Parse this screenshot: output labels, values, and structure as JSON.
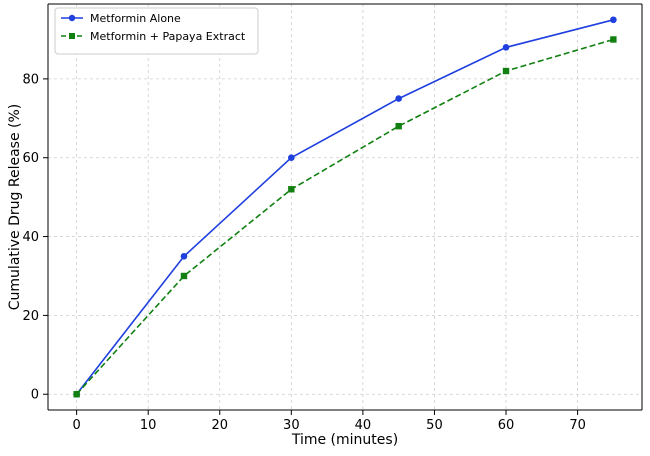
{
  "chart_data": {
    "type": "line",
    "title": "",
    "xlabel": "Time (minutes)",
    "ylabel": "Cumulative Drug Release (%)",
    "x": [
      0,
      15,
      30,
      45,
      60,
      75
    ],
    "xlim": [
      -4,
      79
    ],
    "ylim": [
      -4,
      99
    ],
    "xticks": [
      0,
      10,
      20,
      30,
      40,
      50,
      60,
      70
    ],
    "yticks": [
      0,
      20,
      40,
      60,
      80
    ],
    "grid": true,
    "legend_position": "top-left",
    "series": [
      {
        "name": "Metformin Alone",
        "values": [
          0,
          35,
          60,
          75,
          88,
          95
        ],
        "color": "#1f3fdf",
        "marker": "circle",
        "line_style": "solid"
      },
      {
        "name": "Metformin + Papaya Extract",
        "values": [
          0,
          30,
          52,
          68,
          82,
          90
        ],
        "color": "#118011",
        "marker": "square",
        "line_style": "dashed"
      }
    ]
  }
}
